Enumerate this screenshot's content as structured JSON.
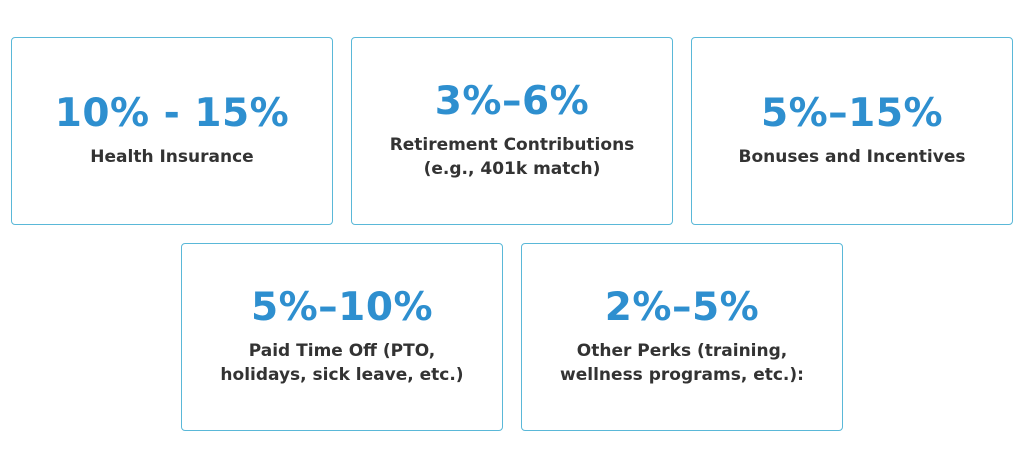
{
  "cards": [
    {
      "value": "10% - 15%",
      "label": [
        "Health Insurance"
      ]
    },
    {
      "value": "3%–6%",
      "label": [
        "Retirement Contributions",
        "(e.g., 401k match)"
      ]
    },
    {
      "value": "5%–15%",
      "label": [
        "Bonuses and Incentives"
      ]
    },
    {
      "value": "5%–10%",
      "label": [
        "Paid Time Off (PTO,",
        "holidays, sick leave, etc.)"
      ]
    },
    {
      "value": "2%–5%",
      "label": [
        "Other Perks (training,",
        "wellness programs, etc.):"
      ]
    }
  ]
}
